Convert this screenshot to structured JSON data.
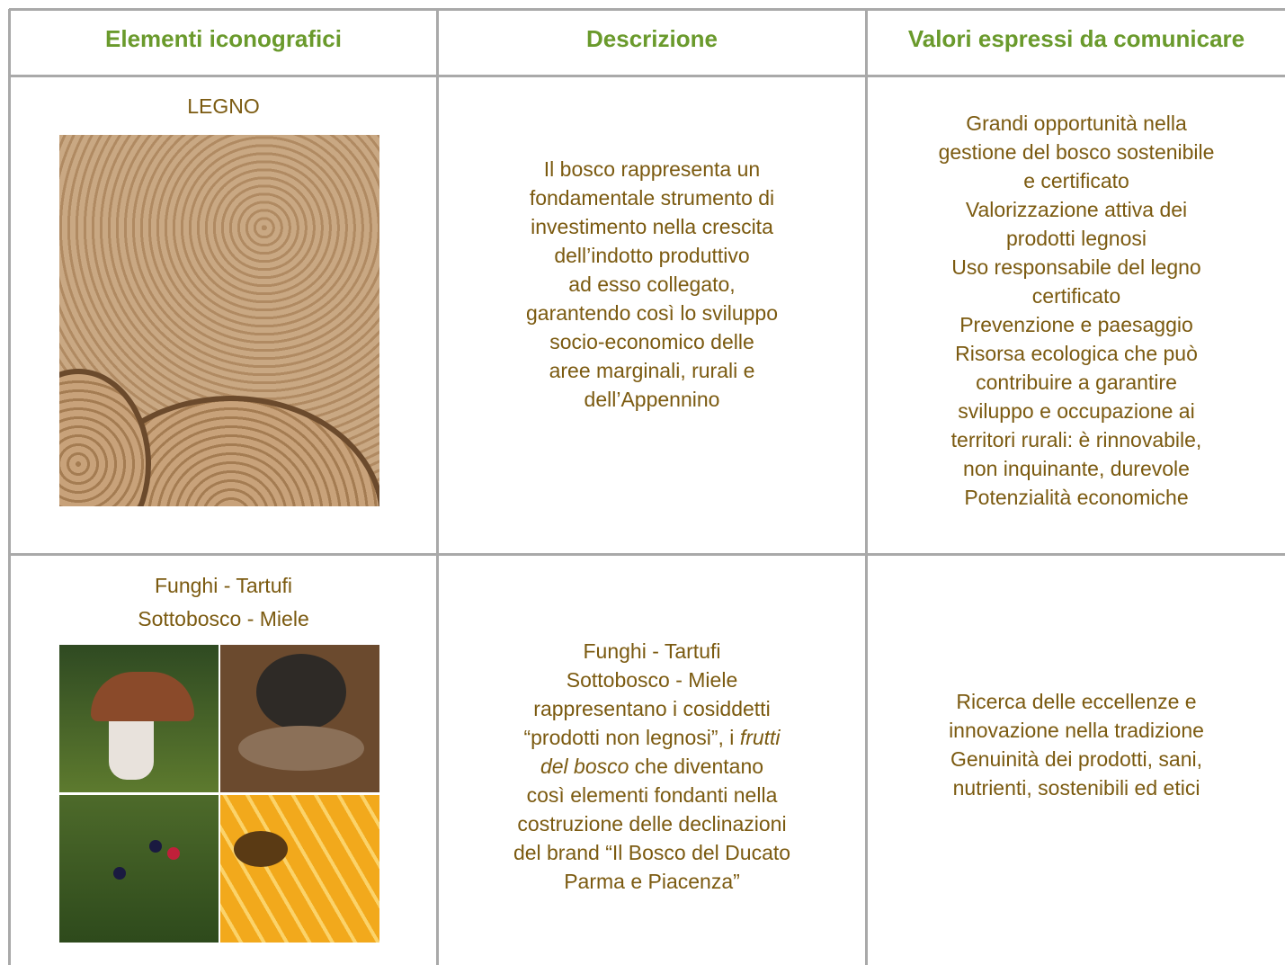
{
  "table": {
    "header": [
      "Elementi iconografici",
      "Descrizione",
      "Valori espressi da comunicare"
    ],
    "rows": [
      {
        "title": [
          "LEGNO"
        ],
        "description": [
          {
            "runs": [
              {
                "text": "Il bosco rappresenta un"
              }
            ]
          },
          {
            "runs": [
              {
                "text": "fondamentale strumento di"
              }
            ]
          },
          {
            "runs": [
              {
                "text": "investimento nella crescita"
              }
            ]
          },
          {
            "runs": [
              {
                "text": "dell’indotto produttivo"
              }
            ]
          },
          {
            "runs": [
              {
                "text": "ad esso collegato,"
              }
            ]
          },
          {
            "runs": [
              {
                "text": "garantendo così lo sviluppo"
              }
            ]
          },
          {
            "runs": [
              {
                "text": "socio-economico delle"
              }
            ]
          },
          {
            "runs": [
              {
                "text": "aree marginali, rurali e"
              }
            ]
          },
          {
            "runs": [
              {
                "text": "dell’Appennino"
              }
            ]
          }
        ],
        "values": [
          "Grandi opportunità nella",
          "gestione del bosco sostenibile",
          "e certificato",
          "Valorizzazione attiva dei",
          "prodotti legnosi",
          "Uso responsabile del legno",
          "certificato",
          "Prevenzione e paesaggio",
          "Risorsa ecologica che può",
          "contribuire a garantire",
          "sviluppo e occupazione ai",
          "territori rurali: è rinnovabile,",
          "non inquinante, durevole",
          "Potenzialità economiche"
        ]
      },
      {
        "title": [
          "Funghi - Tartufi",
          "Sottobosco - Miele"
        ],
        "description": [
          {
            "runs": [
              {
                "text": "Funghi - Tartufi"
              }
            ]
          },
          {
            "runs": [
              {
                "text": "Sottobosco - Miele"
              }
            ]
          },
          {
            "runs": [
              {
                "text": "rappresentano i cosiddetti"
              }
            ]
          },
          {
            "runs": [
              {
                "text": "“prodotti non legnosi”, i "
              },
              {
                "text": "frutti",
                "italic": true
              }
            ]
          },
          {
            "runs": [
              {
                "text": "del bosco",
                "italic": true
              },
              {
                "text": " che diventano"
              }
            ]
          },
          {
            "runs": [
              {
                "text": "così elementi fondanti nella"
              }
            ]
          },
          {
            "runs": [
              {
                "text": "costruzione delle declinazioni"
              }
            ]
          },
          {
            "runs": [
              {
                "text": "del brand “Il Bosco del Ducato"
              }
            ]
          },
          {
            "runs": [
              {
                "text": "Parma e Piacenza”"
              }
            ]
          }
        ],
        "values": [
          "Ricerca delle eccellenze e",
          "innovazione nella tradizione",
          "Genuinità dei prodotti, sani,",
          "nutrienti, sostenibili ed etici"
        ]
      }
    ]
  }
}
